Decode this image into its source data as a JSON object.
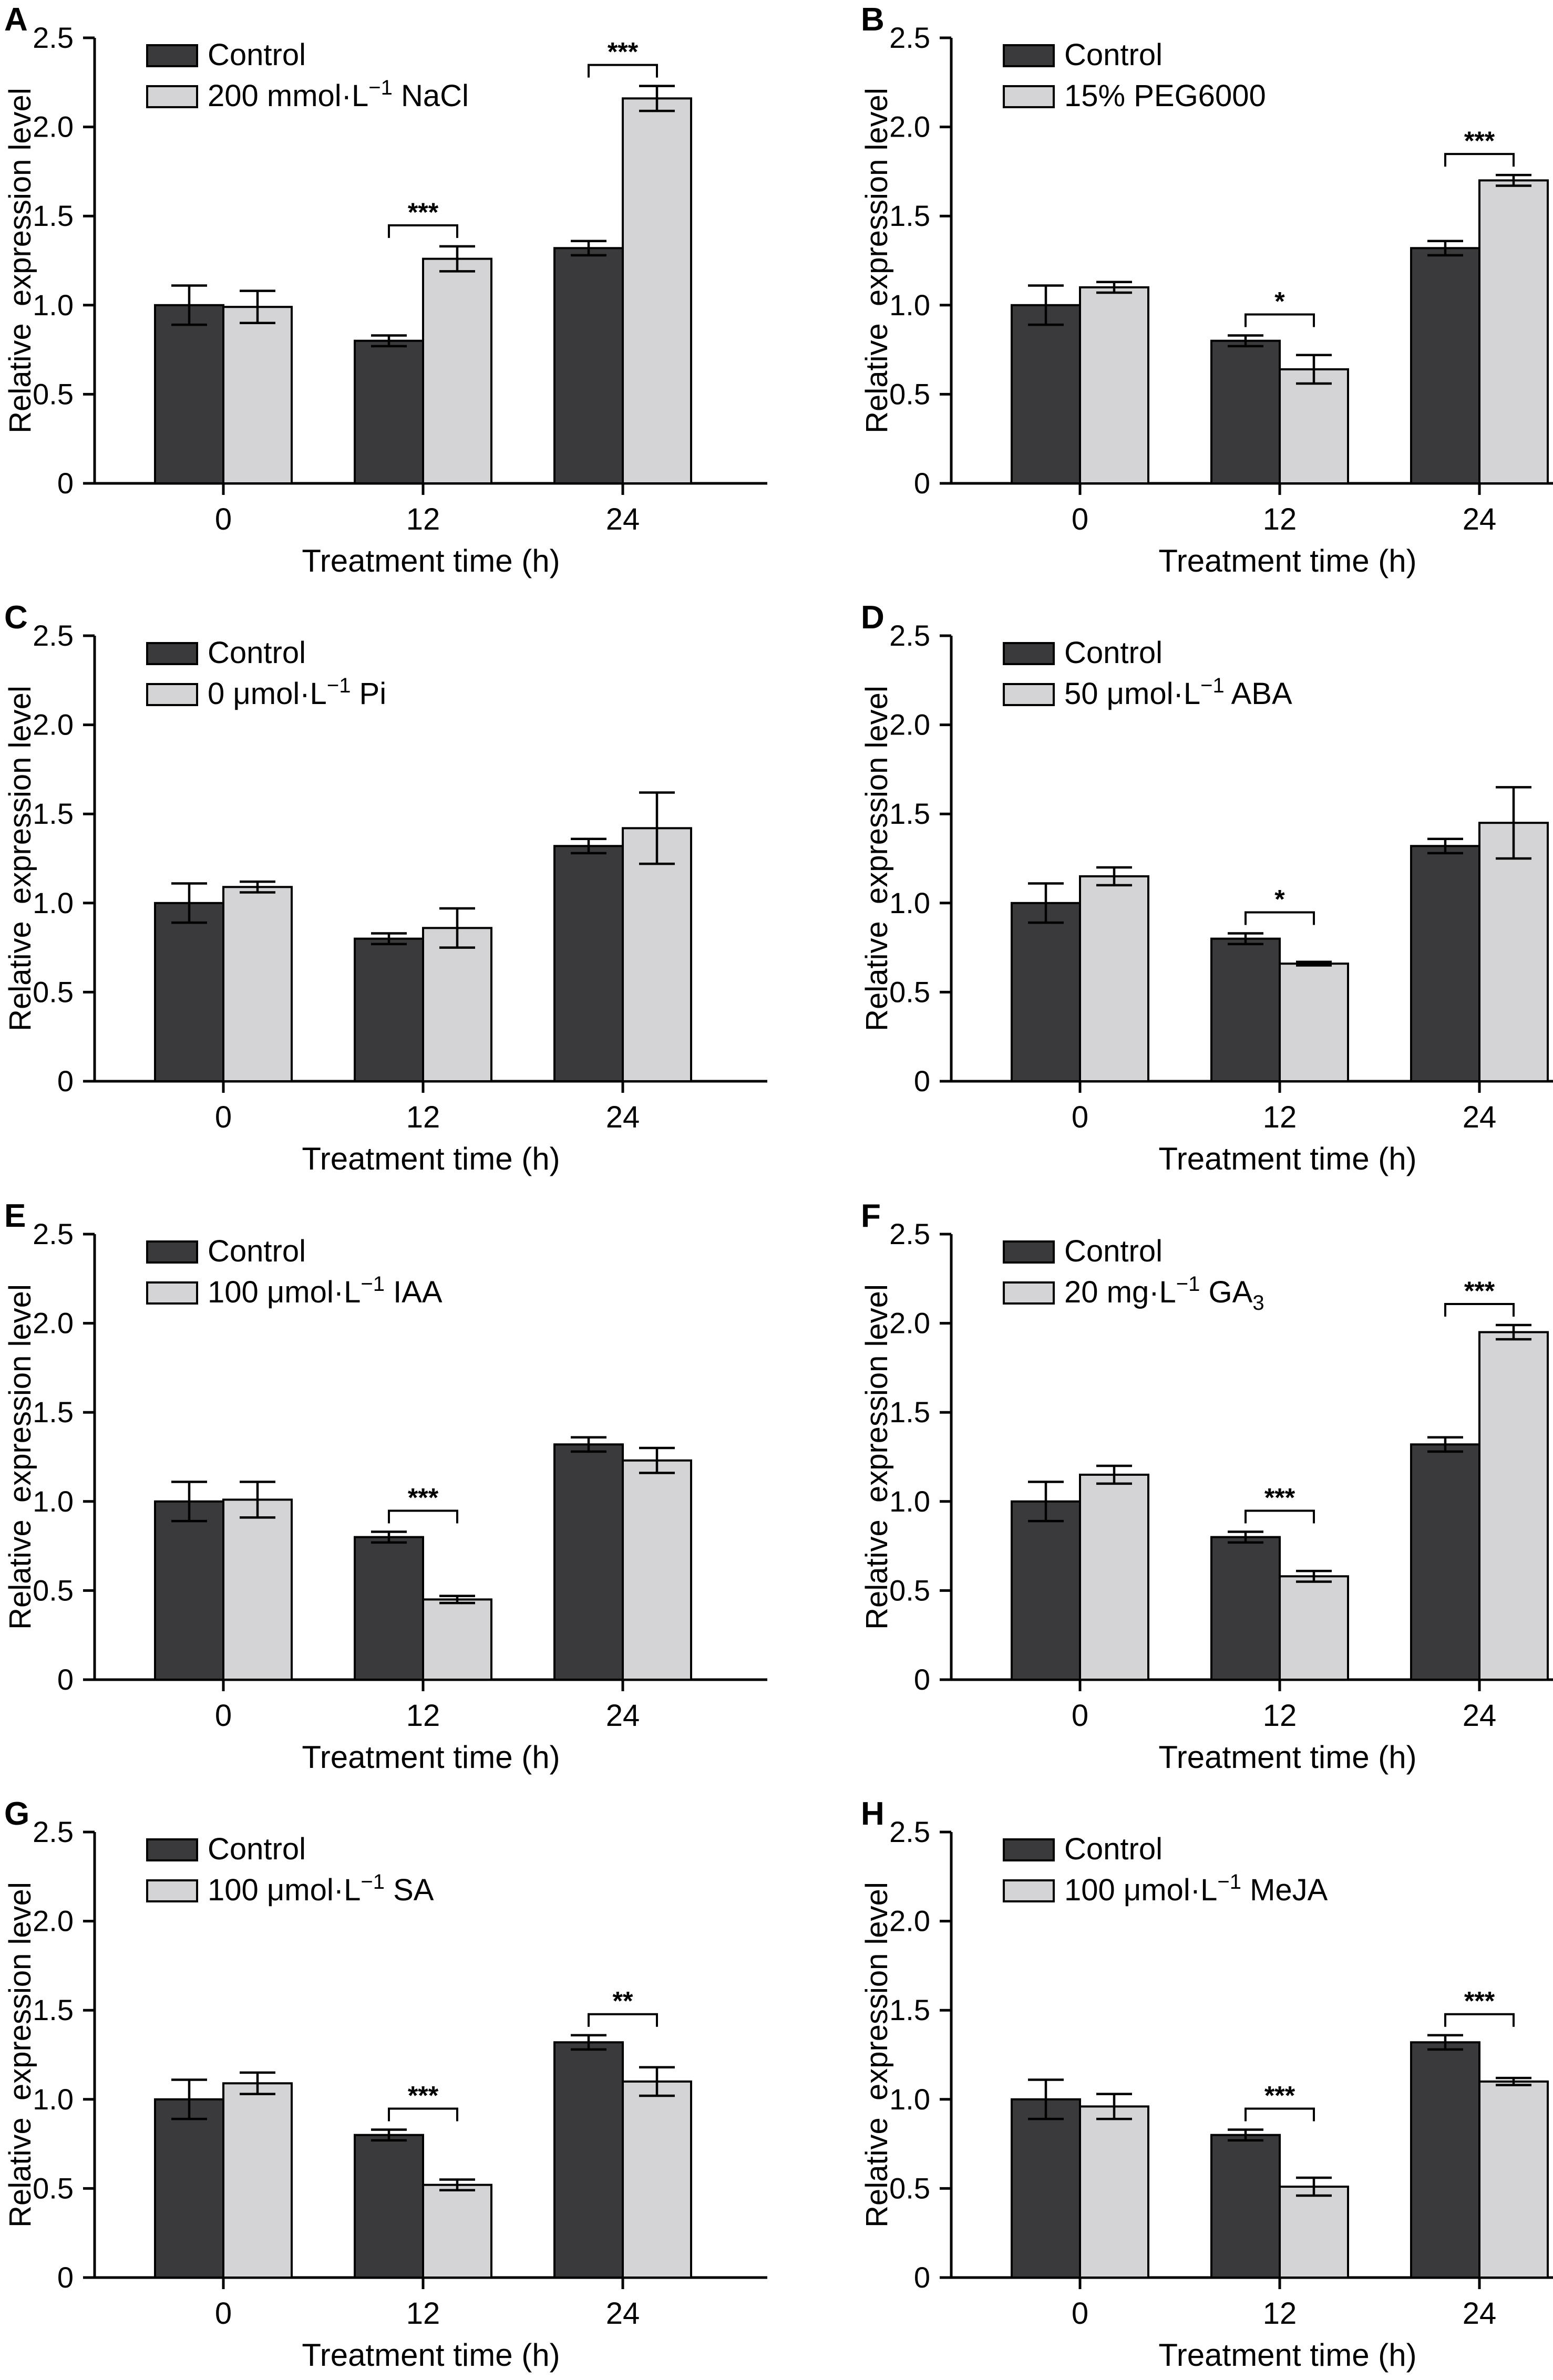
{
  "colors": {
    "control": "#3a3a3c",
    "treatment": "#d4d4d6",
    "axis": "#000000",
    "background": "#ffffff"
  },
  "panels": [
    {
      "letter": "A",
      "legend": {
        "control": "Control",
        "treatment_main": "200 mmol·L",
        "treatment_sup": "−1",
        "treatment_rest": " NaCl"
      }
    },
    {
      "letter": "B",
      "legend": {
        "control": "Control",
        "treatment_main": "15% PEG6000",
        "treatment_sup": "",
        "treatment_rest": ""
      }
    },
    {
      "letter": "C",
      "legend": {
        "control": "Control",
        "treatment_main": "0 μmol·L",
        "treatment_sup": "−1",
        "treatment_rest": " Pi"
      }
    },
    {
      "letter": "D",
      "legend": {
        "control": "Control",
        "treatment_main": "50 μmol·L",
        "treatment_sup": "−1",
        "treatment_rest": " ABA"
      }
    },
    {
      "letter": "E",
      "legend": {
        "control": "Control",
        "treatment_main": "100 μmol·L",
        "treatment_sup": "−1",
        "treatment_rest": " IAA"
      }
    },
    {
      "letter": "F",
      "legend": {
        "control": "Control",
        "treatment_main": "20 mg·L",
        "treatment_sup": "−1",
        "treatment_rest": " GA",
        "treatment_sub": "3"
      }
    },
    {
      "letter": "G",
      "legend": {
        "control": "Control",
        "treatment_main": "100 μmol·L",
        "treatment_sup": "−1",
        "treatment_rest": " SA"
      }
    },
    {
      "letter": "H",
      "legend": {
        "control": "Control",
        "treatment_main": "100 μmol·L",
        "treatment_sup": "−1",
        "treatment_rest": " MeJA"
      }
    }
  ],
  "chart_data": [
    {
      "type": "bar",
      "panel": "A",
      "xlabel": "Treatment time (h)",
      "ylabel": "Relative  expression level",
      "categories": [
        "0",
        "12",
        "24"
      ],
      "ylim": [
        0,
        2.5
      ],
      "yticks": [
        "0",
        "0.5",
        "1.0",
        "1.5",
        "2.0",
        "2.5"
      ],
      "legend_position": "top-left",
      "series": [
        {
          "name": "Control",
          "values": [
            1.0,
            0.8,
            1.32
          ],
          "errors": [
            0.11,
            0.03,
            0.04
          ]
        },
        {
          "name": "200 mmol·L−1 NaCl",
          "values": [
            0.99,
            1.26,
            2.16
          ],
          "errors": [
            0.09,
            0.07,
            0.07
          ]
        }
      ],
      "significance": [
        {
          "category": "12",
          "label": "***"
        },
        {
          "category": "24",
          "label": "***"
        }
      ]
    },
    {
      "type": "bar",
      "panel": "B",
      "xlabel": "Treatment time (h)",
      "ylabel": "Relative  expression level",
      "categories": [
        "0",
        "12",
        "24"
      ],
      "ylim": [
        0,
        2.5
      ],
      "yticks": [
        "0",
        "0.5",
        "1.0",
        "1.5",
        "2.0",
        "2.5"
      ],
      "legend_position": "top-left",
      "series": [
        {
          "name": "Control",
          "values": [
            1.0,
            0.8,
            1.32
          ],
          "errors": [
            0.11,
            0.03,
            0.04
          ]
        },
        {
          "name": "15% PEG6000",
          "values": [
            1.1,
            0.64,
            1.7
          ],
          "errors": [
            0.03,
            0.08,
            0.03
          ]
        }
      ],
      "significance": [
        {
          "category": "12",
          "label": "*"
        },
        {
          "category": "24",
          "label": "***"
        }
      ]
    },
    {
      "type": "bar",
      "panel": "C",
      "xlabel": "Treatment time (h)",
      "ylabel": "Relative  expression level",
      "categories": [
        "0",
        "12",
        "24"
      ],
      "ylim": [
        0,
        2.5
      ],
      "yticks": [
        "0",
        "0.5",
        "1.0",
        "1.5",
        "2.0",
        "2.5"
      ],
      "legend_position": "top-left",
      "series": [
        {
          "name": "Control",
          "values": [
            1.0,
            0.8,
            1.32
          ],
          "errors": [
            0.11,
            0.03,
            0.04
          ]
        },
        {
          "name": "0 μmol·L−1 Pi",
          "values": [
            1.09,
            0.86,
            1.42
          ],
          "errors": [
            0.03,
            0.11,
            0.2
          ]
        }
      ],
      "significance": []
    },
    {
      "type": "bar",
      "panel": "D",
      "xlabel": "Treatment time (h)",
      "ylabel": "Relative  expression level",
      "categories": [
        "0",
        "12",
        "24"
      ],
      "ylim": [
        0,
        2.5
      ],
      "yticks": [
        "0",
        "0.5",
        "1.0",
        "1.5",
        "2.0",
        "2.5"
      ],
      "legend_position": "top-left",
      "series": [
        {
          "name": "Control",
          "values": [
            1.0,
            0.8,
            1.32
          ],
          "errors": [
            0.11,
            0.03,
            0.04
          ]
        },
        {
          "name": "50 μmol·L−1 ABA",
          "values": [
            1.15,
            0.66,
            1.45
          ],
          "errors": [
            0.05,
            0.01,
            0.2
          ]
        }
      ],
      "significance": [
        {
          "category": "12",
          "label": "*"
        }
      ]
    },
    {
      "type": "bar",
      "panel": "E",
      "xlabel": "Treatment time (h)",
      "ylabel": "Relative  expression level",
      "categories": [
        "0",
        "12",
        "24"
      ],
      "ylim": [
        0,
        2.5
      ],
      "yticks": [
        "0",
        "0.5",
        "1.0",
        "1.5",
        "2.0",
        "2.5"
      ],
      "legend_position": "top-left",
      "series": [
        {
          "name": "Control",
          "values": [
            1.0,
            0.8,
            1.32
          ],
          "errors": [
            0.11,
            0.03,
            0.04
          ]
        },
        {
          "name": "100 μmol·L−1 IAA",
          "values": [
            1.01,
            0.45,
            1.23
          ],
          "errors": [
            0.1,
            0.02,
            0.07
          ]
        }
      ],
      "significance": [
        {
          "category": "12",
          "label": "***"
        }
      ]
    },
    {
      "type": "bar",
      "panel": "F",
      "xlabel": "Treatment time (h)",
      "ylabel": "Relative  expression level",
      "categories": [
        "0",
        "12",
        "24"
      ],
      "ylim": [
        0,
        2.5
      ],
      "yticks": [
        "0",
        "0.5",
        "1.0",
        "1.5",
        "2.0",
        "2.5"
      ],
      "legend_position": "top-left",
      "series": [
        {
          "name": "Control",
          "values": [
            1.0,
            0.8,
            1.32
          ],
          "errors": [
            0.11,
            0.03,
            0.04
          ]
        },
        {
          "name": "20 mg·L−1 GA3",
          "values": [
            1.15,
            0.58,
            1.95
          ],
          "errors": [
            0.05,
            0.03,
            0.04
          ]
        }
      ],
      "significance": [
        {
          "category": "12",
          "label": "***"
        },
        {
          "category": "24",
          "label": "***"
        }
      ]
    },
    {
      "type": "bar",
      "panel": "G",
      "xlabel": "Treatment time (h)",
      "ylabel": "Relative  expression level",
      "categories": [
        "0",
        "12",
        "24"
      ],
      "ylim": [
        0,
        2.5
      ],
      "yticks": [
        "0",
        "0.5",
        "1.0",
        "1.5",
        "2.0",
        "2.5"
      ],
      "legend_position": "top-left",
      "series": [
        {
          "name": "Control",
          "values": [
            1.0,
            0.8,
            1.32
          ],
          "errors": [
            0.11,
            0.03,
            0.04
          ]
        },
        {
          "name": "100 μmol·L−1 SA",
          "values": [
            1.09,
            0.52,
            1.1
          ],
          "errors": [
            0.06,
            0.03,
            0.08
          ]
        }
      ],
      "significance": [
        {
          "category": "12",
          "label": "***"
        },
        {
          "category": "24",
          "label": "**"
        }
      ]
    },
    {
      "type": "bar",
      "panel": "H",
      "xlabel": "Treatment time (h)",
      "ylabel": "Relative  expression level",
      "categories": [
        "0",
        "12",
        "24"
      ],
      "ylim": [
        0,
        2.5
      ],
      "yticks": [
        "0",
        "0.5",
        "1.0",
        "1.5",
        "2.0",
        "2.5"
      ],
      "legend_position": "top-left",
      "series": [
        {
          "name": "Control",
          "values": [
            1.0,
            0.8,
            1.32
          ],
          "errors": [
            0.11,
            0.03,
            0.04
          ]
        },
        {
          "name": "100 μmol·L−1 MeJA",
          "values": [
            0.96,
            0.51,
            1.1
          ],
          "errors": [
            0.07,
            0.05,
            0.02
          ]
        }
      ],
      "significance": [
        {
          "category": "12",
          "label": "***"
        },
        {
          "category": "24",
          "label": "***"
        }
      ]
    }
  ]
}
